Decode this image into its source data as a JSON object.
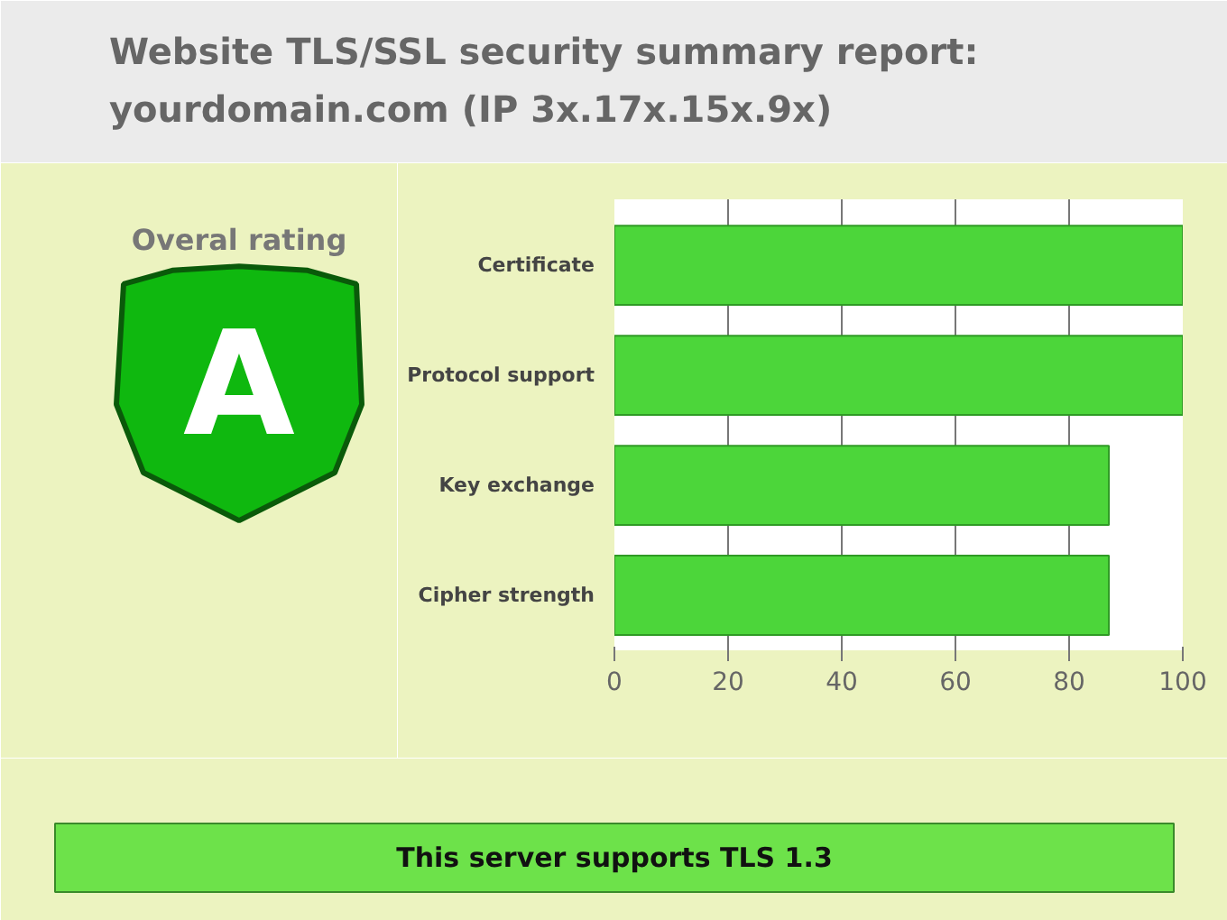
{
  "chart_data": {
    "type": "bar",
    "orientation": "horizontal",
    "title": "Website TLS/SSL security summary report: yourdomain.com (IP 3x.17x.15x.9x)",
    "categories": [
      "Certificate",
      "Protocol support",
      "Key exchange",
      "Cipher strength"
    ],
    "values": [
      100,
      100,
      87,
      87
    ],
    "color": "#4cd63a",
    "xlim": [
      0,
      100
    ],
    "xticks": [
      0,
      20,
      40,
      60,
      80,
      100
    ],
    "grid": "x",
    "annotations": [
      "Overal rating",
      "A",
      "This server supports TLS 1.3"
    ]
  }
}
